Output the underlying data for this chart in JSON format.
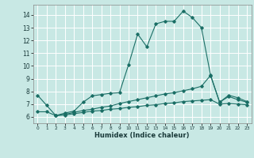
{
  "xlabel": "Humidex (Indice chaleur)",
  "xlim": [
    -0.5,
    23.5
  ],
  "ylim": [
    5.5,
    14.8
  ],
  "yticks": [
    6,
    7,
    8,
    9,
    10,
    11,
    12,
    13,
    14
  ],
  "xticks": [
    0,
    1,
    2,
    3,
    4,
    5,
    6,
    7,
    8,
    9,
    10,
    11,
    12,
    13,
    14,
    15,
    16,
    17,
    18,
    19,
    20,
    21,
    22,
    23
  ],
  "background_color": "#c8e8e4",
  "grid_color": "#ffffff",
  "line_color": "#1a6e65",
  "lines": [
    {
      "x": [
        0,
        1,
        2,
        3,
        4,
        5,
        6,
        7,
        8,
        9,
        10,
        11,
        12,
        13,
        14,
        15,
        16,
        17,
        18,
        19,
        20,
        21,
        22,
        23
      ],
      "y": [
        7.7,
        6.9,
        6.1,
        6.3,
        6.45,
        7.15,
        7.65,
        7.75,
        7.85,
        7.9,
        10.1,
        12.5,
        11.5,
        13.3,
        13.5,
        13.5,
        14.3,
        13.8,
        13.0,
        9.3,
        7.15,
        7.7,
        7.5,
        7.2
      ]
    },
    {
      "x": [
        2,
        3,
        4,
        5,
        6,
        7,
        8,
        9,
        10,
        11,
        12,
        13,
        14,
        15,
        16,
        17,
        18,
        19,
        20,
        21,
        22,
        23
      ],
      "y": [
        6.1,
        6.2,
        6.35,
        6.5,
        6.6,
        6.75,
        6.85,
        7.05,
        7.2,
        7.35,
        7.5,
        7.65,
        7.8,
        7.9,
        8.05,
        8.2,
        8.4,
        9.25,
        7.15,
        7.6,
        7.35,
        7.15
      ]
    },
    {
      "x": [
        0,
        1,
        2,
        3,
        4,
        5,
        6,
        7,
        8,
        9,
        10,
        11,
        12,
        13,
        14,
        15,
        16,
        17,
        18,
        19,
        20,
        21,
        22,
        23
      ],
      "y": [
        6.4,
        6.4,
        6.1,
        6.15,
        6.25,
        6.35,
        6.45,
        6.5,
        6.6,
        6.65,
        6.75,
        6.8,
        6.9,
        6.95,
        7.05,
        7.1,
        7.2,
        7.25,
        7.3,
        7.35,
        7.0,
        7.05,
        7.0,
        6.95
      ]
    }
  ]
}
